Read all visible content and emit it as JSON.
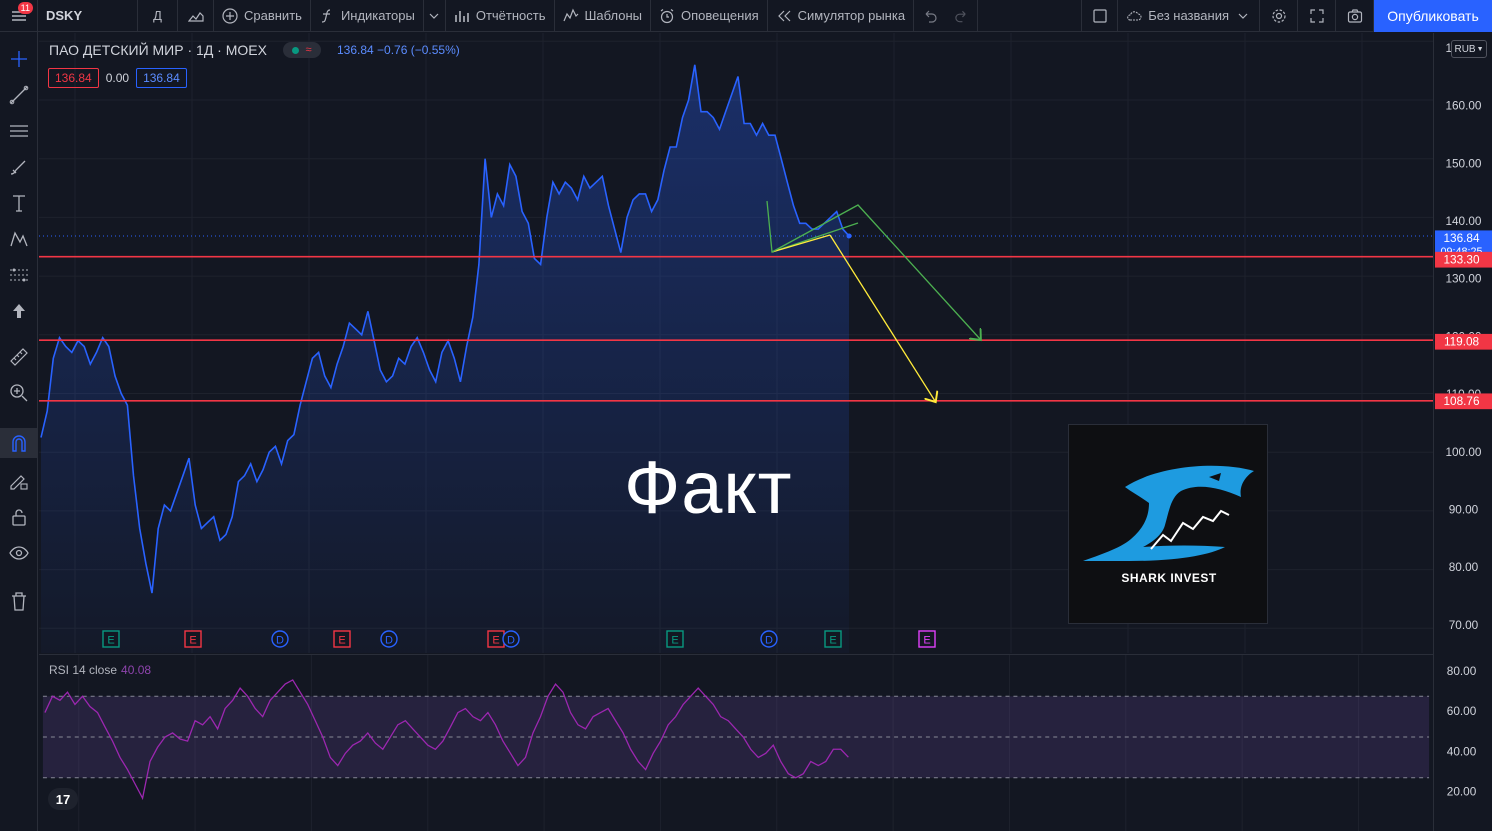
{
  "toolbar": {
    "menu_badge": "11",
    "symbol": "DSKY",
    "interval": "Д",
    "compare": "Сравнить",
    "indicators": "Индикаторы",
    "reports": "Отчётность",
    "templates": "Шаблоны",
    "alerts": "Оповещения",
    "replay": "Симулятор рынка",
    "layout_name": "Без названия",
    "publish": "Опубликовать"
  },
  "legend": {
    "title": "ПАО ДЕТСКИЙ МИР · 1Д · MOEX",
    "quote": "136.84 −0.76 (−0.55%)",
    "sell_price": "136.84",
    "spread": "0.00",
    "buy_price": "136.84"
  },
  "rsi_legend": {
    "name": "RSI 14 close",
    "value": "40.08"
  },
  "annotation": {
    "text": "Факт"
  },
  "logo": {
    "text": "SHARK INVEST"
  },
  "currency": "RUB",
  "price_axis": {
    "ticks": [
      "170.00",
      "160.00",
      "150.00",
      "140.00",
      "130.00",
      "120.00",
      "110.00",
      "100.00",
      "90.00",
      "80.00",
      "70.00"
    ],
    "current_price": "136.84",
    "countdown": "09:48:25",
    "levels": [
      "133.30",
      "119.08",
      "108.76"
    ]
  },
  "rsi_axis": {
    "ticks": [
      "80.00",
      "60.00",
      "40.00",
      "20.00"
    ]
  },
  "events": [
    "E",
    "E",
    "D",
    "E",
    "D",
    "E",
    "D",
    "E",
    "D",
    "E",
    "E"
  ],
  "colors": {
    "line": "#2962ff",
    "level": "#f23645",
    "rsi": "#9c27b0",
    "accent": "#2962ff",
    "green_arrow": "#4caf50",
    "yellow_arrow": "#ffeb3b"
  },
  "chart_data": [
    {
      "type": "area",
      "title": "ПАО ДЕТСКИЙ МИР · 1Д · MOEX",
      "ylim": [
        67,
        172
      ],
      "yticks": [
        70,
        80,
        90,
        100,
        110,
        120,
        130,
        140,
        150,
        160,
        170
      ],
      "series": [
        {
          "values": [
            102.5,
            107,
            116,
            119.5,
            118,
            117,
            119,
            118,
            115,
            117,
            119.5,
            118,
            113,
            110,
            108,
            96,
            87,
            81,
            76,
            87,
            91,
            90,
            93,
            96,
            99,
            91,
            87,
            88,
            89,
            85,
            86,
            89,
            95,
            96,
            98,
            95,
            97,
            100,
            101,
            98,
            102,
            103,
            108,
            112,
            116,
            117,
            113,
            111,
            115,
            118,
            122,
            121,
            120,
            124,
            119,
            114,
            112,
            113,
            116,
            115,
            118,
            119.5,
            117,
            114,
            112,
            117,
            119,
            116,
            112,
            118,
            123,
            132,
            150,
            140,
            144,
            142,
            149,
            147,
            141,
            139,
            133,
            132,
            140,
            146,
            144,
            146,
            145,
            143,
            147,
            145,
            146,
            147,
            142,
            138,
            134,
            140,
            143,
            144,
            144,
            141,
            143,
            148,
            152,
            152,
            157,
            160,
            166,
            158,
            158,
            157,
            155,
            158,
            161,
            164,
            156,
            156,
            154,
            156,
            154,
            154,
            150,
            146,
            142,
            139,
            139,
            138,
            138,
            139,
            140,
            141,
            138,
            136.84
          ]
        }
      ]
    },
    {
      "type": "line",
      "title": "RSI 14 close",
      "ylim": [
        15,
        85
      ],
      "yticks": [
        20,
        40,
        60,
        80
      ],
      "bands": [
        30,
        50,
        70
      ],
      "series": [
        {
          "values": [
            62,
            70,
            68,
            72,
            66,
            70,
            65,
            62,
            55,
            48,
            40,
            34,
            27,
            20,
            38,
            45,
            50,
            52,
            49,
            48,
            58,
            56,
            60,
            54,
            64,
            68,
            74,
            70,
            64,
            60,
            68,
            72,
            76,
            78,
            72,
            66,
            58,
            50,
            40,
            36,
            42,
            46,
            48,
            52,
            47,
            44,
            50,
            56,
            58,
            54,
            50,
            46,
            44,
            48,
            55,
            62,
            64,
            60,
            58,
            62,
            56,
            48,
            42,
            36,
            40,
            52,
            60,
            70,
            76,
            72,
            62,
            56,
            54,
            60,
            62,
            64,
            58,
            52,
            44,
            38,
            34,
            42,
            48,
            56,
            60,
            66,
            70,
            74,
            70,
            66,
            60,
            58,
            54,
            50,
            44,
            40,
            42,
            46,
            38,
            32,
            30,
            32,
            38,
            36,
            38,
            44,
            44,
            40.08
          ]
        }
      ]
    }
  ]
}
